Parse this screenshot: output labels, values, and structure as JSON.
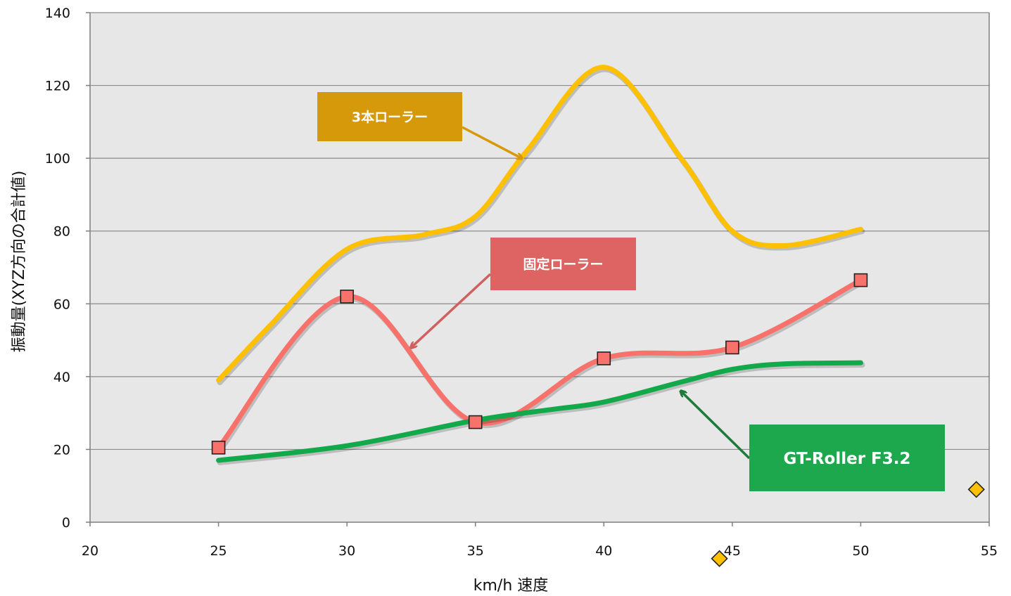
{
  "chart_data": {
    "type": "line",
    "title": "",
    "xlabel": "km/h 速度",
    "ylabel": "振動量(XYZ方向の合計値)",
    "xlim": [
      20,
      55
    ],
    "ylim": [
      0,
      140
    ],
    "x_ticks": [
      20,
      25,
      30,
      35,
      40,
      45,
      50,
      55
    ],
    "y_ticks": [
      0,
      20,
      40,
      60,
      80,
      100,
      120,
      140
    ],
    "grid": true,
    "series": [
      {
        "name": "3本ローラー",
        "color": "#FFC000",
        "marker": "none",
        "points": [
          [
            25,
            39
          ],
          [
            27,
            54
          ],
          [
            30,
            75
          ],
          [
            33,
            79
          ],
          [
            35,
            84
          ],
          [
            37,
            102
          ],
          [
            40,
            125
          ],
          [
            43,
            100
          ],
          [
            45,
            80
          ],
          [
            47,
            76
          ],
          [
            50,
            80.5
          ]
        ]
      },
      {
        "name": "固定ローラー",
        "color": "#F8716A",
        "marker": "square",
        "points": [
          [
            25,
            20.5
          ],
          [
            30,
            62
          ],
          [
            35,
            27.5
          ],
          [
            40,
            45
          ],
          [
            45,
            48
          ],
          [
            50,
            66.5
          ]
        ]
      },
      {
        "name": "GT-Roller F3.2",
        "color": "#12A94A",
        "marker": "none",
        "points": [
          [
            25,
            17
          ],
          [
            30,
            21
          ],
          [
            35,
            28
          ],
          [
            38,
            31
          ],
          [
            40,
            33
          ],
          [
            43,
            38.5
          ],
          [
            45,
            42
          ],
          [
            47,
            43.5
          ],
          [
            50,
            43.8
          ]
        ]
      }
    ],
    "stray_markers": [
      {
        "x": 54.5,
        "y": 9,
        "color": "#FFC000",
        "shape": "diamond"
      },
      {
        "x": 44.5,
        "y": -10,
        "color": "#FFC000",
        "shape": "diamond"
      }
    ],
    "annotations": [
      {
        "text": "3本ローラー",
        "bg": "#D6990A",
        "series": 0,
        "point_to": [
          36.8,
          100
        ]
      },
      {
        "text": "固定ローラー",
        "bg": "#DD6462",
        "series": 1,
        "point_to": [
          32.5,
          48
        ]
      },
      {
        "text": "GT-Roller F3.2",
        "bg": "#1EA84E",
        "series": 2,
        "point_to": [
          43,
          36
        ]
      }
    ],
    "colors": {
      "plot_background": "#E7E7E7",
      "gridline": "#8C8C8C",
      "axis": "#7F7F7F"
    }
  }
}
